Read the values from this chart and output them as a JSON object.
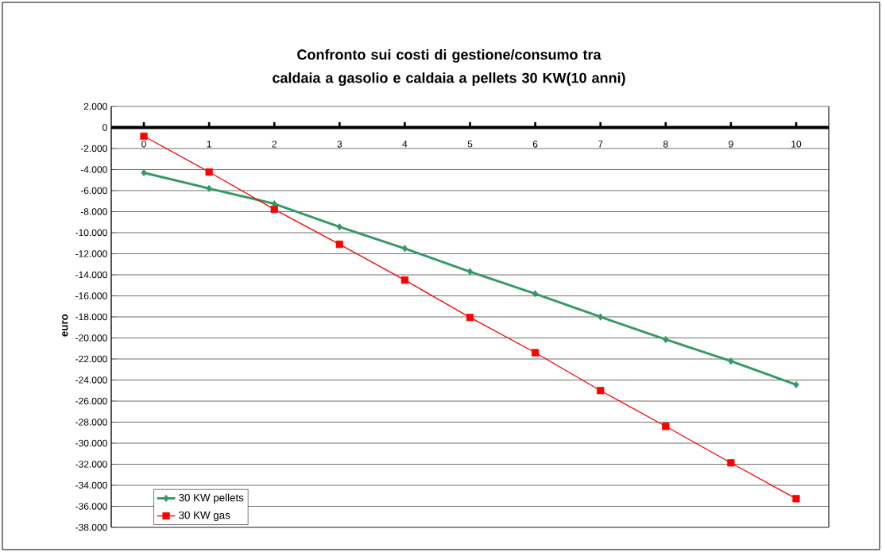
{
  "chart_data": {
    "type": "line",
    "title": "Confronto sui costi di gestione/consumo tra caldaia a gasolio e caldaia a pellets 30 KW(10 anni)",
    "ylabel": "euro",
    "categories": [
      "0",
      "1",
      "2",
      "3",
      "4",
      "5",
      "6",
      "7",
      "8",
      "9",
      "10"
    ],
    "series": [
      {
        "name": "30 KW pellets",
        "color": "#339966",
        "marker": "diamond",
        "values": [
          -4300,
          -5800,
          -7250,
          -9450,
          -11500,
          -13700,
          -15800,
          -18000,
          -20150,
          -22200,
          -24450
        ]
      },
      {
        "name": "30 KW gas",
        "color": "#ff0000",
        "marker": "square",
        "values": [
          -830,
          -4230,
          -7780,
          -11100,
          -14500,
          -18050,
          -21400,
          -25000,
          -28400,
          -31870,
          -35270
        ]
      }
    ],
    "ylim": [
      -38000,
      2000
    ],
    "yticks": [
      {
        "value": -38000,
        "label": "-38.000"
      },
      {
        "value": -36000,
        "label": "-36.000"
      },
      {
        "value": -34000,
        "label": "-34.000"
      },
      {
        "value": -32000,
        "label": "-32.000"
      },
      {
        "value": -30000,
        "label": "-30.000"
      },
      {
        "value": -28000,
        "label": "-28.000"
      },
      {
        "value": -26000,
        "label": "-26.000"
      },
      {
        "value": -24000,
        "label": "-24.000"
      },
      {
        "value": -22000,
        "label": "-22.000"
      },
      {
        "value": -20000,
        "label": "-20.000"
      },
      {
        "value": -18000,
        "label": "-18.000"
      },
      {
        "value": -16000,
        "label": "-16.000"
      },
      {
        "value": -14000,
        "label": "-14.000"
      },
      {
        "value": -12000,
        "label": "-12.000"
      },
      {
        "value": -10000,
        "label": "-10.000"
      },
      {
        "value": -8000,
        "label": "-8.000"
      },
      {
        "value": -6000,
        "label": "-6.000"
      },
      {
        "value": -4000,
        "label": "-4.000"
      },
      {
        "value": -2000,
        "label": "-2.000"
      },
      0,
      {
        "value": 2000,
        "label": "2.000"
      }
    ],
    "grid": "y",
    "legend": "bottom left",
    "line_style": "solid"
  }
}
